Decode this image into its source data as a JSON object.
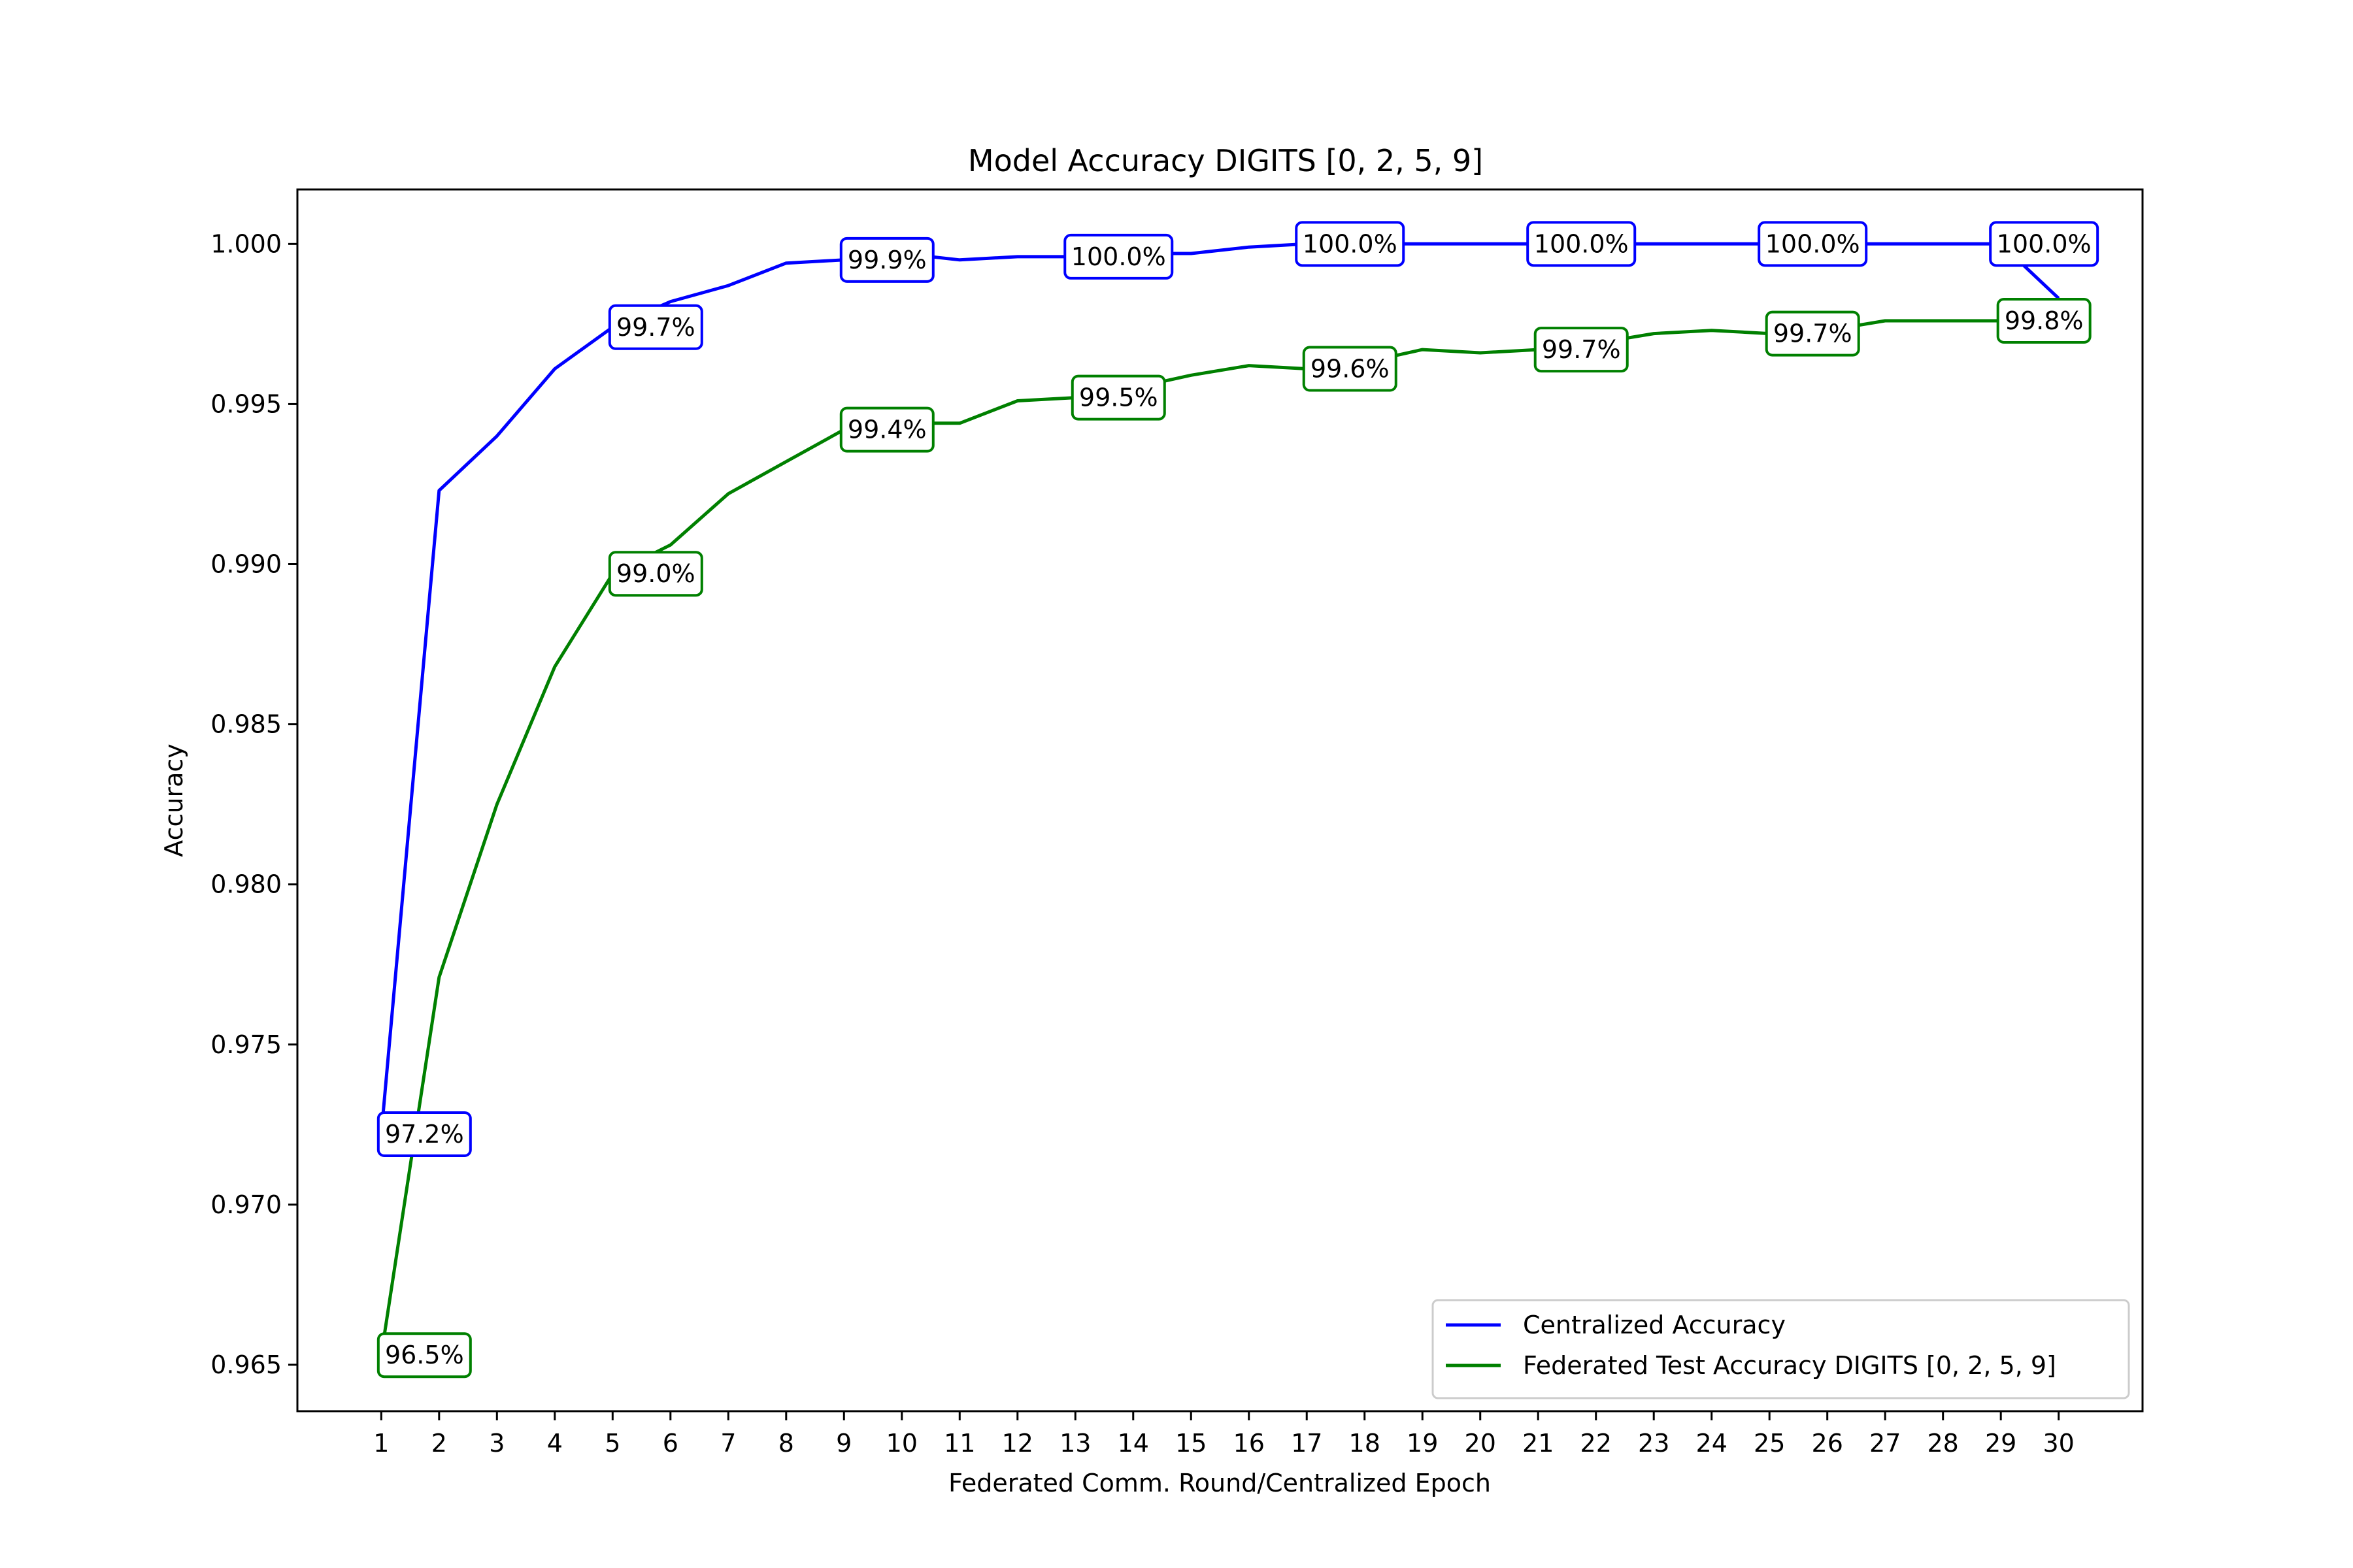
{
  "chart_data": {
    "type": "line",
    "title": "Model Accuracy DIGITS [0, 2, 5, 9]",
    "xlabel": "Federated Comm. Round/Centralized Epoch",
    "ylabel": "Accuracy",
    "x": [
      1,
      2,
      3,
      4,
      5,
      6,
      7,
      8,
      9,
      10,
      11,
      12,
      13,
      14,
      15,
      16,
      17,
      18,
      19,
      20,
      21,
      22,
      23,
      24,
      25,
      26,
      27,
      28,
      29,
      30
    ],
    "xlim": [
      -0.45,
      31.45
    ],
    "ylim": [
      0.96355,
      1.0017
    ],
    "yticks": [
      0.965,
      0.97,
      0.975,
      0.98,
      0.985,
      0.99,
      0.995,
      1.0
    ],
    "ytick_labels": [
      "0.965",
      "0.970",
      "0.975",
      "0.980",
      "0.985",
      "0.990",
      "0.995",
      "1.000"
    ],
    "xtick_labels": [
      "1",
      "2",
      "3",
      "4",
      "5",
      "6",
      "7",
      "8",
      "9",
      "10",
      "11",
      "12",
      "13",
      "14",
      "15",
      "16",
      "17",
      "18",
      "19",
      "20",
      "21",
      "22",
      "23",
      "24",
      "25",
      "26",
      "27",
      "28",
      "29",
      "30"
    ],
    "grid": false,
    "legend_position": "lower-right",
    "series": [
      {
        "name": "Centralized Accuracy",
        "color": "#0000ff",
        "values": [
          0.9722,
          0.9923,
          0.994,
          0.9961,
          0.9974,
          0.9982,
          0.9987,
          0.9994,
          0.9995,
          0.9997,
          0.9995,
          0.9996,
          0.9996,
          0.9997,
          0.9997,
          0.9999,
          1.0,
          1.0,
          1.0,
          1.0,
          1.0,
          1.0,
          1.0,
          1.0,
          1.0,
          1.0,
          1.0,
          1.0,
          1.0,
          0.9983
        ],
        "annotations": [
          {
            "x": 1,
            "label": "97.2%"
          },
          {
            "x": 5,
            "label": "99.7%"
          },
          {
            "x": 9,
            "label": "99.9%"
          },
          {
            "x": 13,
            "label": "100.0%"
          },
          {
            "x": 17,
            "label": "100.0%"
          },
          {
            "x": 21,
            "label": "100.0%"
          },
          {
            "x": 25,
            "label": "100.0%"
          },
          {
            "x": 29,
            "label": "100.0%"
          }
        ]
      },
      {
        "name": "Federated Test Accuracy DIGITS [0, 2, 5, 9]",
        "color": "#008000",
        "values": [
          0.9653,
          0.9771,
          0.9825,
          0.9868,
          0.9897,
          0.9906,
          0.9922,
          0.9932,
          0.9942,
          0.9944,
          0.9944,
          0.9951,
          0.9952,
          0.9955,
          0.9959,
          0.9962,
          0.9961,
          0.9963,
          0.9967,
          0.9966,
          0.9967,
          0.9969,
          0.9972,
          0.9973,
          0.9972,
          0.9973,
          0.9976,
          0.9976,
          0.9976,
          0.9978
        ],
        "annotations": [
          {
            "x": 1,
            "label": "96.5%"
          },
          {
            "x": 5,
            "label": "99.0%"
          },
          {
            "x": 9,
            "label": "99.4%"
          },
          {
            "x": 13,
            "label": "99.5%"
          },
          {
            "x": 17,
            "label": "99.6%"
          },
          {
            "x": 21,
            "label": "99.7%"
          },
          {
            "x": 25,
            "label": "99.7%"
          },
          {
            "x": 29,
            "label": "99.8%"
          }
        ]
      }
    ]
  }
}
